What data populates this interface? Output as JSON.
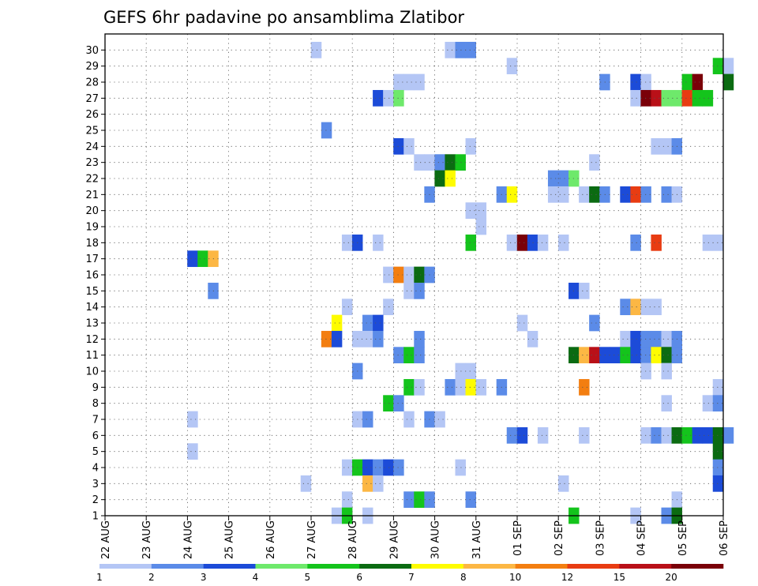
{
  "chart_data": {
    "type": "heatmap",
    "title": "GEFS 6hr padavine po ansamblima Zlatibor",
    "x_ticks": [
      "22 AUG",
      "23 AUG",
      "24 AUG",
      "25 AUG",
      "26 AUG",
      "27 AUG",
      "28 AUG",
      "29 AUG",
      "30 AUG",
      "31 AUG",
      "01 SEP",
      "02 SEP",
      "03 SEP",
      "04 SEP",
      "05 SEP",
      "06 SEP"
    ],
    "y_ticks": [
      "1",
      "2",
      "3",
      "4",
      "5",
      "6",
      "7",
      "8",
      "9",
      "10",
      "11",
      "12",
      "13",
      "14",
      "15",
      "16",
      "17",
      "18",
      "19",
      "20",
      "21",
      "22",
      "23",
      "24",
      "25",
      "26",
      "27",
      "28",
      "29",
      "30"
    ],
    "time_step_hours": 6,
    "ylim": [
      0,
      30
    ],
    "grid": true,
    "legend_levels": [
      "1",
      "2",
      "3",
      "4",
      "5",
      "6",
      "7",
      "8",
      "10",
      "12",
      "15",
      "20"
    ],
    "legend_colors": [
      "#b4c6f5",
      "#5b8be8",
      "#1c4bd8",
      "#6ee96b",
      "#14c41c",
      "#0b6b12",
      "#fefc00",
      "#fcb744",
      "#f37e10",
      "#e83c12",
      "#b91018",
      "#7a0008"
    ],
    "cells": [
      {
        "member": 30,
        "x": "27 AUG 00Z",
        "c": 1
      },
      {
        "member": 30,
        "x": "30 AUG 06Z",
        "c": 1
      },
      {
        "member": 30,
        "x": "30 AUG 12Z",
        "c": 2
      },
      {
        "member": 30,
        "x": "30 AUG 18Z",
        "c": 2
      },
      {
        "member": 29,
        "x": "31 AUG 18Z",
        "c": 1
      },
      {
        "member": 29,
        "x": "05 SEP 18Z",
        "c": 5
      },
      {
        "member": 29,
        "x": "06 SEP 00Z",
        "c": 1
      },
      {
        "member": 28,
        "x": "29 AUG 00Z",
        "c": 1
      },
      {
        "member": 28,
        "x": "29 AUG 06Z",
        "c": 1
      },
      {
        "member": 28,
        "x": "29 AUG 12Z",
        "c": 1
      },
      {
        "member": 28,
        "x": "03 SEP 00Z",
        "c": 2
      },
      {
        "member": 28,
        "x": "03 SEP 18Z",
        "c": 3
      },
      {
        "member": 28,
        "x": "04 SEP 00Z",
        "c": 1
      },
      {
        "member": 28,
        "x": "05 SEP 00Z",
        "c": 5
      },
      {
        "member": 28,
        "x": "05 SEP 06Z",
        "c": 12
      },
      {
        "member": 28,
        "x": "06 SEP 00Z",
        "c": 6
      },
      {
        "member": 27,
        "x": "28 AUG 12Z",
        "c": 3
      },
      {
        "member": 27,
        "x": "28 AUG 18Z",
        "c": 1
      },
      {
        "member": 27,
        "x": "29 AUG 00Z",
        "c": 4
      },
      {
        "member": 27,
        "x": "03 SEP 18Z",
        "c": 1
      },
      {
        "member": 27,
        "x": "04 SEP 00Z",
        "c": 12
      },
      {
        "member": 27,
        "x": "04 SEP 06Z",
        "c": 11
      },
      {
        "member": 27,
        "x": "04 SEP 12Z",
        "c": 4
      },
      {
        "member": 27,
        "x": "04 SEP 18Z",
        "c": 4
      },
      {
        "member": 27,
        "x": "05 SEP 00Z",
        "c": 10
      },
      {
        "member": 27,
        "x": "05 SEP 06Z",
        "c": 5
      },
      {
        "member": 27,
        "x": "05 SEP 12Z",
        "c": 5
      },
      {
        "member": 25,
        "x": "27 AUG 06Z",
        "c": 2
      },
      {
        "member": 24,
        "x": "29 AUG 00Z",
        "c": 3
      },
      {
        "member": 24,
        "x": "29 AUG 06Z",
        "c": 1
      },
      {
        "member": 24,
        "x": "30 AUG 18Z",
        "c": 1
      },
      {
        "member": 24,
        "x": "04 SEP 06Z",
        "c": 1
      },
      {
        "member": 24,
        "x": "04 SEP 12Z",
        "c": 1
      },
      {
        "member": 24,
        "x": "04 SEP 18Z",
        "c": 2
      },
      {
        "member": 23,
        "x": "29 AUG 12Z",
        "c": 1
      },
      {
        "member": 23,
        "x": "29 AUG 18Z",
        "c": 1
      },
      {
        "member": 23,
        "x": "30 AUG 00Z",
        "c": 2
      },
      {
        "member": 23,
        "x": "30 AUG 06Z",
        "c": 6
      },
      {
        "member": 23,
        "x": "30 AUG 12Z",
        "c": 5
      },
      {
        "member": 23,
        "x": "02 SEP 18Z",
        "c": 1
      },
      {
        "member": 22,
        "x": "30 AUG 00Z",
        "c": 6
      },
      {
        "member": 22,
        "x": "30 AUG 06Z",
        "c": 7
      },
      {
        "member": 22,
        "x": "01 SEP 18Z",
        "c": 2
      },
      {
        "member": 22,
        "x": "02 SEP 00Z",
        "c": 2
      },
      {
        "member": 22,
        "x": "02 SEP 06Z",
        "c": 4
      },
      {
        "member": 21,
        "x": "29 AUG 18Z",
        "c": 2
      },
      {
        "member": 21,
        "x": "31 AUG 12Z",
        "c": 2
      },
      {
        "member": 21,
        "x": "31 AUG 18Z",
        "c": 7
      },
      {
        "member": 21,
        "x": "01 SEP 18Z",
        "c": 1
      },
      {
        "member": 21,
        "x": "02 SEP 00Z",
        "c": 1
      },
      {
        "member": 21,
        "x": "02 SEP 12Z",
        "c": 1
      },
      {
        "member": 21,
        "x": "02 SEP 18Z",
        "c": 6
      },
      {
        "member": 21,
        "x": "03 SEP 00Z",
        "c": 2
      },
      {
        "member": 21,
        "x": "03 SEP 12Z",
        "c": 3
      },
      {
        "member": 21,
        "x": "03 SEP 18Z",
        "c": 10
      },
      {
        "member": 21,
        "x": "04 SEP 00Z",
        "c": 2
      },
      {
        "member": 21,
        "x": "04 SEP 12Z",
        "c": 2
      },
      {
        "member": 21,
        "x": "04 SEP 18Z",
        "c": 1
      },
      {
        "member": 20,
        "x": "30 AUG 18Z",
        "c": 1
      },
      {
        "member": 20,
        "x": "31 AUG 00Z",
        "c": 1
      },
      {
        "member": 19,
        "x": "31 AUG 00Z",
        "c": 1
      },
      {
        "member": 18,
        "x": "27 AUG 18Z",
        "c": 1
      },
      {
        "member": 18,
        "x": "28 AUG 00Z",
        "c": 3
      },
      {
        "member": 18,
        "x": "28 AUG 12Z",
        "c": 1
      },
      {
        "member": 18,
        "x": "30 AUG 18Z",
        "c": 5
      },
      {
        "member": 18,
        "x": "31 AUG 18Z",
        "c": 1
      },
      {
        "member": 18,
        "x": "01 SEP 00Z",
        "c": 12
      },
      {
        "member": 18,
        "x": "01 SEP 06Z",
        "c": 3
      },
      {
        "member": 18,
        "x": "01 SEP 12Z",
        "c": 1
      },
      {
        "member": 18,
        "x": "02 SEP 00Z",
        "c": 1
      },
      {
        "member": 18,
        "x": "03 SEP 18Z",
        "c": 2
      },
      {
        "member": 18,
        "x": "04 SEP 06Z",
        "c": 10
      },
      {
        "member": 18,
        "x": "05 SEP 12Z",
        "c": 1
      },
      {
        "member": 18,
        "x": "05 SEP 18Z",
        "c": 1
      },
      {
        "member": 17,
        "x": "24 AUG 00Z",
        "c": 3
      },
      {
        "member": 17,
        "x": "24 AUG 06Z",
        "c": 5
      },
      {
        "member": 17,
        "x": "24 AUG 12Z",
        "c": 8
      },
      {
        "member": 16,
        "x": "28 AUG 18Z",
        "c": 1
      },
      {
        "member": 16,
        "x": "29 AUG 00Z",
        "c": 9
      },
      {
        "member": 16,
        "x": "29 AUG 06Z",
        "c": 1
      },
      {
        "member": 16,
        "x": "29 AUG 12Z",
        "c": 6
      },
      {
        "member": 16,
        "x": "29 AUG 18Z",
        "c": 2
      },
      {
        "member": 15,
        "x": "24 AUG 12Z",
        "c": 2
      },
      {
        "member": 15,
        "x": "29 AUG 06Z",
        "c": 1
      },
      {
        "member": 15,
        "x": "29 AUG 12Z",
        "c": 2
      },
      {
        "member": 15,
        "x": "02 SEP 06Z",
        "c": 3
      },
      {
        "member": 15,
        "x": "02 SEP 12Z",
        "c": 1
      },
      {
        "member": 14,
        "x": "27 AUG 18Z",
        "c": 1
      },
      {
        "member": 14,
        "x": "28 AUG 18Z",
        "c": 1
      },
      {
        "member": 14,
        "x": "03 SEP 12Z",
        "c": 2
      },
      {
        "member": 14,
        "x": "03 SEP 18Z",
        "c": 8
      },
      {
        "member": 14,
        "x": "04 SEP 00Z",
        "c": 1
      },
      {
        "member": 14,
        "x": "04 SEP 06Z",
        "c": 1
      },
      {
        "member": 13,
        "x": "27 AUG 12Z",
        "c": 7
      },
      {
        "member": 13,
        "x": "28 AUG 06Z",
        "c": 2
      },
      {
        "member": 13,
        "x": "28 AUG 12Z",
        "c": 3
      },
      {
        "member": 13,
        "x": "01 SEP 00Z",
        "c": 1
      },
      {
        "member": 13,
        "x": "02 SEP 18Z",
        "c": 2
      },
      {
        "member": 12,
        "x": "27 AUG 06Z",
        "c": 9
      },
      {
        "member": 12,
        "x": "27 AUG 12Z",
        "c": 3
      },
      {
        "member": 12,
        "x": "28 AUG 00Z",
        "c": 1
      },
      {
        "member": 12,
        "x": "28 AUG 06Z",
        "c": 1
      },
      {
        "member": 12,
        "x": "28 AUG 12Z",
        "c": 2
      },
      {
        "member": 12,
        "x": "29 AUG 12Z",
        "c": 2
      },
      {
        "member": 12,
        "x": "01 SEP 06Z",
        "c": 1
      },
      {
        "member": 12,
        "x": "03 SEP 12Z",
        "c": 1
      },
      {
        "member": 12,
        "x": "03 SEP 18Z",
        "c": 3
      },
      {
        "member": 12,
        "x": "04 SEP 00Z",
        "c": 2
      },
      {
        "member": 12,
        "x": "04 SEP 06Z",
        "c": 2
      },
      {
        "member": 12,
        "x": "04 SEP 12Z",
        "c": 1
      },
      {
        "member": 12,
        "x": "04 SEP 18Z",
        "c": 2
      },
      {
        "member": 11,
        "x": "29 AUG 00Z",
        "c": 2
      },
      {
        "member": 11,
        "x": "29 AUG 06Z",
        "c": 5
      },
      {
        "member": 11,
        "x": "29 AUG 12Z",
        "c": 2
      },
      {
        "member": 11,
        "x": "02 SEP 06Z",
        "c": 6
      },
      {
        "member": 11,
        "x": "02 SEP 12Z",
        "c": 8
      },
      {
        "member": 11,
        "x": "02 SEP 18Z",
        "c": 11
      },
      {
        "member": 11,
        "x": "03 SEP 00Z",
        "c": 3
      },
      {
        "member": 11,
        "x": "03 SEP 06Z",
        "c": 3
      },
      {
        "member": 11,
        "x": "03 SEP 12Z",
        "c": 5
      },
      {
        "member": 11,
        "x": "03 SEP 18Z",
        "c": 3
      },
      {
        "member": 11,
        "x": "04 SEP 00Z",
        "c": 2
      },
      {
        "member": 11,
        "x": "04 SEP 06Z",
        "c": 7
      },
      {
        "member": 11,
        "x": "04 SEP 12Z",
        "c": 6
      },
      {
        "member": 11,
        "x": "04 SEP 18Z",
        "c": 2
      },
      {
        "member": 10,
        "x": "28 AUG 00Z",
        "c": 2
      },
      {
        "member": 10,
        "x": "30 AUG 12Z",
        "c": 1
      },
      {
        "member": 10,
        "x": "30 AUG 18Z",
        "c": 1
      },
      {
        "member": 10,
        "x": "04 SEP 00Z",
        "c": 1
      },
      {
        "member": 10,
        "x": "04 SEP 12Z",
        "c": 1
      },
      {
        "member": 9,
        "x": "29 AUG 06Z",
        "c": 5
      },
      {
        "member": 9,
        "x": "29 AUG 12Z",
        "c": 1
      },
      {
        "member": 9,
        "x": "30 AUG 06Z",
        "c": 2
      },
      {
        "member": 9,
        "x": "30 AUG 12Z",
        "c": 1
      },
      {
        "member": 9,
        "x": "30 AUG 18Z",
        "c": 7
      },
      {
        "member": 9,
        "x": "31 AUG 00Z",
        "c": 1
      },
      {
        "member": 9,
        "x": "31 AUG 12Z",
        "c": 2
      },
      {
        "member": 9,
        "x": "02 SEP 12Z",
        "c": 9
      },
      {
        "member": 9,
        "x": "05 SEP 18Z",
        "c": 1
      },
      {
        "member": 8,
        "x": "28 AUG 18Z",
        "c": 5
      },
      {
        "member": 8,
        "x": "29 AUG 00Z",
        "c": 2
      },
      {
        "member": 8,
        "x": "04 SEP 12Z",
        "c": 1
      },
      {
        "member": 8,
        "x": "05 SEP 12Z",
        "c": 1
      },
      {
        "member": 8,
        "x": "05 SEP 18Z",
        "c": 2
      },
      {
        "member": 7,
        "x": "24 AUG 00Z",
        "c": 1
      },
      {
        "member": 7,
        "x": "28 AUG 00Z",
        "c": 1
      },
      {
        "member": 7,
        "x": "28 AUG 06Z",
        "c": 2
      },
      {
        "member": 7,
        "x": "29 AUG 06Z",
        "c": 1
      },
      {
        "member": 7,
        "x": "29 AUG 18Z",
        "c": 2
      },
      {
        "member": 7,
        "x": "30 AUG 00Z",
        "c": 1
      },
      {
        "member": 6,
        "x": "31 AUG 18Z",
        "c": 2
      },
      {
        "member": 6,
        "x": "01 SEP 00Z",
        "c": 3
      },
      {
        "member": 6,
        "x": "01 SEP 12Z",
        "c": 1
      },
      {
        "member": 6,
        "x": "02 SEP 12Z",
        "c": 1
      },
      {
        "member": 6,
        "x": "04 SEP 00Z",
        "c": 1
      },
      {
        "member": 6,
        "x": "04 SEP 06Z",
        "c": 2
      },
      {
        "member": 6,
        "x": "04 SEP 12Z",
        "c": 1
      },
      {
        "member": 6,
        "x": "04 SEP 18Z",
        "c": 6
      },
      {
        "member": 6,
        "x": "05 SEP 00Z",
        "c": 5
      },
      {
        "member": 6,
        "x": "05 SEP 06Z",
        "c": 3
      },
      {
        "member": 6,
        "x": "05 SEP 12Z",
        "c": 3
      },
      {
        "member": 6,
        "x": "05 SEP 18Z",
        "c": 6
      },
      {
        "member": 6,
        "x": "06 SEP 00Z",
        "c": 2
      },
      {
        "member": 5,
        "x": "24 AUG 00Z",
        "c": 1
      },
      {
        "member": 5,
        "x": "05 SEP 18Z",
        "c": 6
      },
      {
        "member": 4,
        "x": "27 AUG 18Z",
        "c": 1
      },
      {
        "member": 4,
        "x": "28 AUG 00Z",
        "c": 5
      },
      {
        "member": 4,
        "x": "28 AUG 06Z",
        "c": 3
      },
      {
        "member": 4,
        "x": "28 AUG 12Z",
        "c": 2
      },
      {
        "member": 4,
        "x": "28 AUG 18Z",
        "c": 3
      },
      {
        "member": 4,
        "x": "29 AUG 00Z",
        "c": 2
      },
      {
        "member": 4,
        "x": "30 AUG 12Z",
        "c": 1
      },
      {
        "member": 4,
        "x": "05 SEP 18Z",
        "c": 2
      },
      {
        "member": 3,
        "x": "26 AUG 18Z",
        "c": 1
      },
      {
        "member": 3,
        "x": "28 AUG 06Z",
        "c": 8
      },
      {
        "member": 3,
        "x": "28 AUG 12Z",
        "c": 1
      },
      {
        "member": 3,
        "x": "02 SEP 00Z",
        "c": 1
      },
      {
        "member": 3,
        "x": "05 SEP 18Z",
        "c": 3
      },
      {
        "member": 2,
        "x": "27 AUG 18Z",
        "c": 1
      },
      {
        "member": 2,
        "x": "29 AUG 06Z",
        "c": 2
      },
      {
        "member": 2,
        "x": "29 AUG 12Z",
        "c": 5
      },
      {
        "member": 2,
        "x": "29 AUG 18Z",
        "c": 2
      },
      {
        "member": 2,
        "x": "30 AUG 18Z",
        "c": 2
      },
      {
        "member": 2,
        "x": "04 SEP 18Z",
        "c": 1
      },
      {
        "member": 1,
        "x": "27 AUG 12Z",
        "c": 1
      },
      {
        "member": 1,
        "x": "27 AUG 18Z",
        "c": 5
      },
      {
        "member": 1,
        "x": "28 AUG 06Z",
        "c": 1
      },
      {
        "member": 1,
        "x": "02 SEP 06Z",
        "c": 5
      },
      {
        "member": 1,
        "x": "03 SEP 18Z",
        "c": 1
      },
      {
        "member": 1,
        "x": "04 SEP 12Z",
        "c": 2
      },
      {
        "member": 1,
        "x": "04 SEP 18Z",
        "c": 6
      }
    ]
  }
}
